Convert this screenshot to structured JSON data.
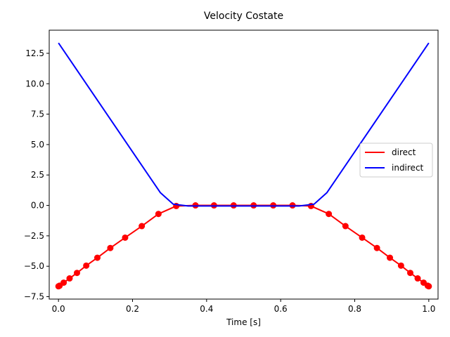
{
  "chart_data": {
    "type": "line",
    "title": "Velocity Costate",
    "xlabel": "Time [s]",
    "ylabel": "",
    "xlim": [
      -0.025,
      1.025
    ],
    "ylim": [
      -7.7,
      14.4
    ],
    "xticks": [
      0.0,
      0.2,
      0.4,
      0.6,
      0.8,
      1.0
    ],
    "xtick_labels": [
      "0.0",
      "0.2",
      "0.4",
      "0.6",
      "0.8",
      "1.0"
    ],
    "yticks": [
      -7.5,
      -5.0,
      -2.5,
      0.0,
      2.5,
      5.0,
      7.5,
      10.0,
      12.5
    ],
    "ytick_labels": [
      "−7.5",
      "−5.0",
      "−2.5",
      "0.0",
      "2.5",
      "5.0",
      "7.5",
      "10.0",
      "12.5"
    ],
    "grid": false,
    "legend_position": "center-right",
    "series": [
      {
        "name": "direct",
        "color": "#ff0000",
        "markers": true,
        "x": [
          0.0,
          0.003,
          0.014,
          0.03,
          0.05,
          0.075,
          0.105,
          0.14,
          0.18,
          0.225,
          0.27,
          0.318,
          0.37,
          0.42,
          0.473,
          0.527,
          0.58,
          0.632,
          0.682,
          0.73,
          0.775,
          0.82,
          0.86,
          0.895,
          0.925,
          0.95,
          0.97,
          0.986,
          0.997,
          1.0
        ],
        "y": [
          -6.65,
          -6.6,
          -6.35,
          -6.0,
          -5.55,
          -4.95,
          -4.3,
          -3.5,
          -2.65,
          -1.7,
          -0.7,
          -0.05,
          0.0,
          0.0,
          0.0,
          0.0,
          0.0,
          0.0,
          -0.05,
          -0.7,
          -1.7,
          -2.65,
          -3.5,
          -4.3,
          -4.95,
          -5.55,
          -6.0,
          -6.35,
          -6.6,
          -6.65
        ]
      },
      {
        "name": "indirect",
        "color": "#0000ff",
        "markers": false,
        "x": [
          0.0,
          0.275,
          0.31,
          0.35,
          0.65,
          0.69,
          0.725,
          1.0
        ],
        "y": [
          13.35,
          1.05,
          0.1,
          -0.05,
          -0.05,
          0.1,
          1.05,
          13.35
        ]
      }
    ]
  }
}
